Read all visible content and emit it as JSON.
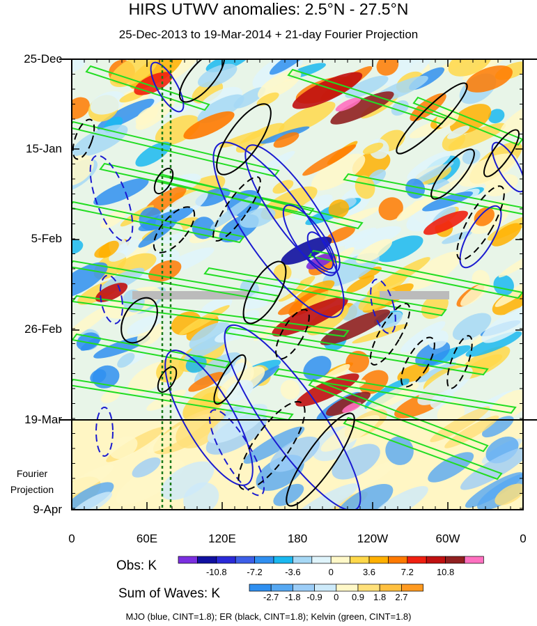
{
  "chart_data": {
    "type": "heatmap",
    "title": "HIRS UTWV anomalies: 2.5°N - 27.5°N",
    "subtitle": "25-Dec-2013 to 19-Mar-2014 + 21-day Fourier Projection",
    "y_ticks": [
      "25-Dec",
      "15-Jan",
      "5-Feb",
      "26-Feb",
      "19-Mar",
      "9-Apr"
    ],
    "x_ticks": [
      "0",
      "60E",
      "120E",
      "180",
      "120W",
      "60W",
      "0"
    ],
    "fourier_label_1": "Fourier",
    "fourier_label_2": "Projection",
    "obs_colorbar": {
      "label": "Obs: K",
      "ticks": [
        "-10.8",
        "-7.2",
        "-3.6",
        "0",
        "3.6",
        "7.2",
        "10.8"
      ],
      "colors": [
        "#7b2fe0",
        "#1010a0",
        "#2a2ad8",
        "#3d5fe8",
        "#2f8ff0",
        "#1ab8f0",
        "#a6d8f5",
        "#dff4fb",
        "#fff8c8",
        "#ffd84a",
        "#ffb000",
        "#ff7a00",
        "#f02010",
        "#c01010",
        "#902020",
        "#ff70c0"
      ]
    },
    "waves_colorbar": {
      "label": "Sum of Waves: K",
      "ticks": [
        "-2.7",
        "-1.8",
        "-0.9",
        "0",
        "0.9",
        "1.8",
        "2.7"
      ],
      "colors": [
        "#2f8ff0",
        "#56a8f2",
        "#9ccdf7",
        "#cdeafa",
        "#fff8c8",
        "#ffe07a",
        "#ffc040",
        "#ff9a20"
      ]
    },
    "footer": "MJO (blue, CINT=1.8); ER (black, CINT=1.8); Kelvin (green, CINT=1.8)",
    "line_colors": {
      "mjo": "#1a1ad0",
      "er": "#000000",
      "kelvin": "#22dd22",
      "missing": "#bbbbbb",
      "marker": "#1a7a1a"
    }
  }
}
